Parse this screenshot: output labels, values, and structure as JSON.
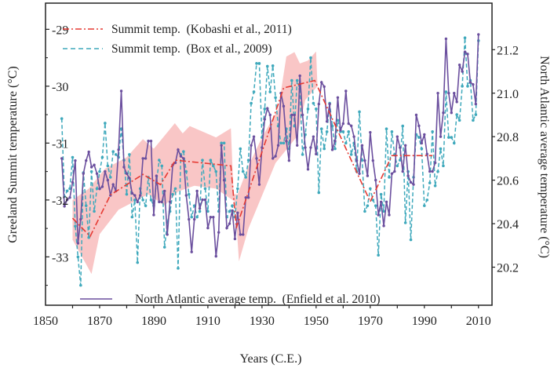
{
  "chart_data": {
    "type": "line",
    "xlabel": "Years (C.E.)",
    "ylabel_left": "Greeland Summit temperature (°C)",
    "ylabel_right": "North Atlantic average temperature (°C)",
    "xlim": [
      1850,
      2015
    ],
    "ylim_left": [
      -33.85,
      -28.54
    ],
    "ylim_right": [
      20.025,
      21.414
    ],
    "x_ticks": [
      1850,
      1870,
      1890,
      1910,
      1930,
      1950,
      1970,
      1990,
      2010
    ],
    "y_ticks_left": [
      -29,
      -30,
      -31,
      -32,
      -33
    ],
    "y_ticks_right": [
      21.2,
      21.0,
      20.8,
      20.6,
      20.4,
      20.2
    ],
    "grid": false,
    "legend": [
      {
        "label": "Summit temp.  (Kobashi et al., 2011)",
        "placement": "top-left"
      },
      {
        "label": "Summit temp.  (Box et al., 2009)",
        "placement": "top-left"
      },
      {
        "label": "North Atlantic average temp.  (Enfield et al. 2010)",
        "placement": "bottom"
      }
    ],
    "series": [
      {
        "name": "Summit temp.  (Kobashi et al., 2011)",
        "axis": "left",
        "style": "dash-dot",
        "color": "#e53a33",
        "x": [
          1860,
          1866.5,
          1874,
          1886,
          1892.5,
          1898,
          1918.5,
          1920.5,
          1938,
          1949.5,
          1970,
          1978,
          1993
        ],
        "y": [
          -32.32,
          -32.64,
          -31.91,
          -31.55,
          -31.73,
          -31.3,
          -31.4,
          -32.49,
          -30.03,
          -29.9,
          -32.03,
          -31.22,
          -31.22
        ],
        "uncertainty_band": {
          "color": "#f9c6c6",
          "upper_x": [
            1860,
            1866,
            1872,
            1880,
            1886,
            1890,
            1897.8,
            1900.7,
            1903.3,
            1913,
            1918.5,
            1919.5,
            1921,
            1925,
            1930,
            1936,
            1939,
            1942,
            1944,
            1947,
            1950,
            1950.5
          ],
          "upper_y": [
            -32.0,
            -31.8,
            -31.45,
            -31.25,
            -30.93,
            -31.1,
            -30.65,
            -30.83,
            -30.7,
            -30.9,
            -30.74,
            -31.9,
            -31.9,
            -31.4,
            -30.9,
            -30.4,
            -29.48,
            -29.4,
            -29.6,
            -29.55,
            -29.39,
            -30.0
          ],
          "lower_x": [
            1860,
            1867,
            1870,
            1877,
            1888,
            1894,
            1899,
            1905,
            1913,
            1920,
            1921.5,
            1925,
            1935,
            1943,
            1946,
            1950.5
          ],
          "lower_y": [
            -32.7,
            -33.3,
            -32.6,
            -32.17,
            -31.9,
            -32.1,
            -31.85,
            -31.75,
            -31.8,
            -32.03,
            -33.08,
            -32.5,
            -31.35,
            -30.88,
            -30.24,
            -30.0
          ]
        }
      },
      {
        "name": "Summit temp.  (Box et al., 2009)",
        "axis": "left",
        "style": "dashed",
        "color": "#3fa9bc",
        "x_start": 1856,
        "y": [
          -30.57,
          -31.94,
          -31.84,
          -31.8,
          -31.25,
          -32.46,
          -33.0,
          -33.5,
          -31.52,
          -32.1,
          -32.66,
          -31.5,
          -32.2,
          -31.8,
          -31.5,
          -31.25,
          -30.65,
          -31.4,
          -31.6,
          -31.15,
          -31.2,
          -31.25,
          -30.75,
          -31.3,
          -31.9,
          -31.2,
          -32.3,
          -32.0,
          -33.1,
          -31.8,
          -32.0,
          -32.1,
          -31.6,
          -32.0,
          -32.1,
          -31.7,
          -31.3,
          -31.4,
          -32.83,
          -32.4,
          -32.2,
          -31.9,
          -31.8,
          -33.2,
          -31.2,
          -31.15,
          -31.5,
          -31.9,
          -32.3,
          -32.1,
          -32.3,
          -32.2,
          -31.3,
          -31.8,
          -32.2,
          -31.3,
          -31.4,
          -31.5,
          -32.2,
          -31.0,
          -31.0,
          -32.3,
          -32.2,
          -32.1,
          -32.3,
          -31.8,
          -31.1,
          -31.5,
          -31.6,
          -31.3,
          -30.3,
          -30.1,
          -29.6,
          -29.6,
          -30.9,
          -30.4,
          -29.65,
          -30.1,
          -29.64,
          -30.2,
          -30.7,
          -31.0,
          -31.0,
          -30.75,
          -31.1,
          -29.9,
          -30.7,
          -29.9,
          -30.05,
          -31.2,
          -30.85,
          -30.4,
          -29.5,
          -30.3,
          -30.4,
          -31.87,
          -30.75,
          -31.1,
          -30.8,
          -30.3,
          -30.7,
          -31.1,
          -30.6,
          -30.8,
          -30.8,
          -31.0,
          -30.8,
          -31.2,
          -31.0,
          -31.5,
          -30.45,
          -31.3,
          -32.2,
          -32.1,
          -31.8,
          -32.0,
          -32.1,
          -32.97,
          -31.9,
          -32.2,
          -30.75,
          -31.6,
          -30.8,
          -31.2,
          -31.4,
          -31.3,
          -30.7,
          -32.4,
          -31.5,
          -32.7,
          -31.6,
          -30.85,
          -30.9,
          -31.1,
          -32.1,
          -32.0,
          -31.7,
          -30.8,
          -31.75,
          -31.5,
          -31.1,
          -31.4,
          -30.1,
          -30.9,
          -30.9,
          -31.0,
          -30.5,
          -30.6,
          -30.0,
          -29.15,
          -30.0,
          -29.9,
          -30.6,
          -30.5,
          -29.2
        ]
      },
      {
        "name": "North Atlantic average temp.  (Enfield et al. 2010)",
        "axis": "right",
        "style": "solid",
        "color": "#6b4f9e",
        "x_start": 1856,
        "y": [
          20.7,
          20.48,
          20.51,
          20.52,
          20.59,
          20.69,
          20.31,
          20.42,
          20.63,
          20.69,
          20.73,
          20.66,
          20.67,
          20.63,
          20.56,
          20.57,
          20.64,
          20.6,
          20.53,
          20.58,
          20.55,
          20.74,
          21.01,
          20.66,
          20.63,
          20.61,
          20.54,
          20.53,
          20.5,
          20.53,
          20.7,
          20.7,
          20.78,
          20.78,
          20.44,
          20.62,
          20.5,
          20.5,
          20.55,
          20.35,
          20.5,
          20.67,
          20.68,
          20.74,
          20.71,
          20.7,
          20.53,
          20.42,
          20.27,
          20.42,
          20.55,
          20.47,
          20.51,
          20.51,
          20.38,
          20.43,
          20.43,
          20.25,
          20.36,
          20.76,
          20.6,
          20.38,
          20.4,
          20.46,
          20.33,
          20.45,
          20.35,
          20.35,
          20.52,
          20.52,
          20.76,
          20.8,
          20.7,
          20.58,
          20.75,
          20.88,
          20.93,
          20.9,
          20.7,
          20.71,
          20.76,
          21.0,
          20.94,
          20.78,
          20.69,
          20.9,
          20.9,
          20.76,
          21.08,
          20.9,
          20.75,
          20.65,
          20.75,
          20.8,
          20.72,
          20.95,
          21.05,
          21.03,
          20.87,
          20.95,
          20.74,
          20.78,
          20.98,
          20.83,
          20.86,
          21.01,
          20.86,
          20.85,
          20.8,
          20.69,
          20.63,
          20.76,
          20.69,
          20.62,
          20.82,
          20.69,
          20.6,
          20.44,
          20.5,
          20.39,
          20.5,
          20.44,
          20.63,
          20.64,
          20.8,
          20.75,
          20.64,
          20.76,
          20.62,
          20.59,
          20.58,
          20.9,
          20.85,
          20.77,
          20.81,
          20.72,
          20.64,
          20.64,
          20.68,
          21.0,
          20.8,
          20.91,
          21.25,
          21.0,
          20.91,
          21.0,
          20.96,
          21.13,
          21.1,
          21.19,
          21.18,
          21.05,
          21.04,
          20.95,
          21.27
        ]
      }
    ]
  }
}
